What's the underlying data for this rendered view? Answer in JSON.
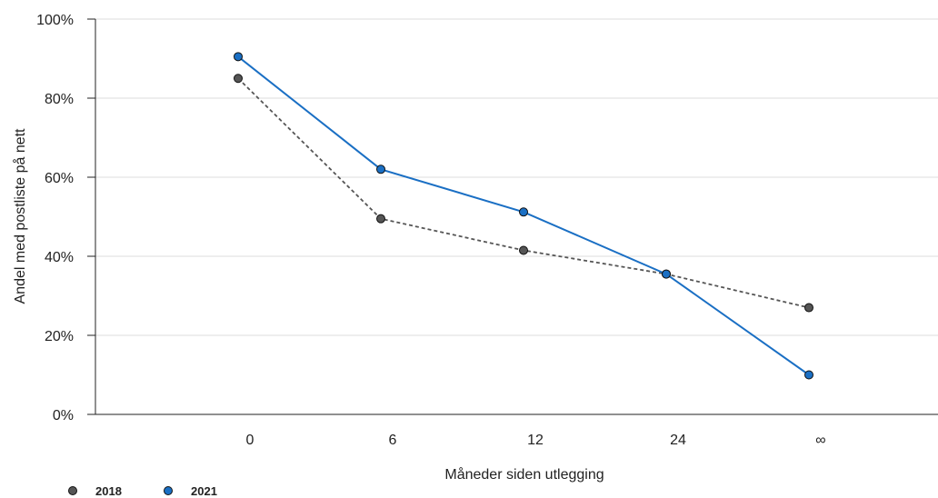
{
  "chart_data": {
    "type": "line",
    "title": "",
    "xlabel": "Måneder siden utlegging",
    "ylabel": "Andel med postliste på nett",
    "categories": [
      "0",
      "6",
      "12",
      "24",
      "∞"
    ],
    "ylim": [
      0,
      100
    ],
    "yticks": [
      "0%",
      "20%",
      "40%",
      "60%",
      "80%",
      "100%"
    ],
    "ytick_values": [
      0,
      20,
      40,
      60,
      80,
      100
    ],
    "grid": "horizontal",
    "legend_position": "bottom-left",
    "series": [
      {
        "name": "2018",
        "values": [
          85,
          49.5,
          41.5,
          35.5,
          27
        ],
        "color": "#555555",
        "style": "dashed"
      },
      {
        "name": "2021",
        "values": [
          90.5,
          62,
          51.2,
          35.5,
          10
        ],
        "color": "#1a6fc4",
        "style": "solid"
      }
    ]
  }
}
